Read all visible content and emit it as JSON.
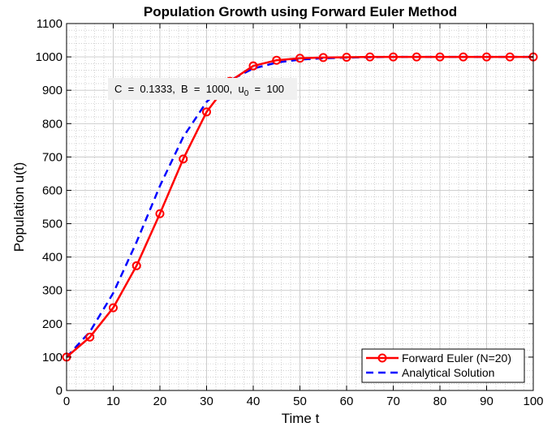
{
  "chart_data": {
    "type": "line",
    "title": "Population Growth using Forward Euler Method",
    "xlabel": "Time t",
    "ylabel": "Population u(t)",
    "xlim": [
      0,
      100
    ],
    "ylim": [
      0,
      1100
    ],
    "xticks": [
      0,
      10,
      20,
      30,
      40,
      50,
      60,
      70,
      80,
      90,
      100
    ],
    "yticks": [
      0,
      100,
      200,
      300,
      400,
      500,
      600,
      700,
      800,
      900,
      1000,
      1100
    ],
    "grid": "major and minor",
    "legend_position": "bottom-right",
    "annotation": {
      "prefix": "C  =  0.1333,  B  =  1000,  u",
      "sub": "0",
      "suffix": "  =  100"
    },
    "series": [
      {
        "name": "Forward Euler (N=20)",
        "color": "#ff0000",
        "style": "solid",
        "marker": "circle",
        "x": [
          0,
          5,
          10,
          15,
          20,
          25,
          30,
          35,
          40,
          45,
          50,
          55,
          60,
          65,
          70,
          75,
          80,
          85,
          90,
          95,
          100
        ],
        "y": [
          100,
          160,
          248,
          374,
          530,
          694,
          835,
          927,
          973,
          990,
          996,
          998,
          999,
          1000,
          1000,
          1000,
          1000,
          1000,
          1000,
          1000,
          1000
        ]
      },
      {
        "name": "Analytical Solution",
        "color": "#0000ff",
        "style": "dashed",
        "marker": "none",
        "x": [
          0,
          5,
          10,
          15,
          20,
          25,
          30,
          35,
          40,
          45,
          50,
          55,
          60,
          65,
          70,
          75,
          80,
          85,
          90,
          95,
          100
        ],
        "y": [
          100,
          176,
          292,
          445,
          613,
          760,
          865,
          930,
          965,
          983,
          992,
          996,
          998,
          999,
          1000,
          1000,
          1000,
          1000,
          1000,
          1000,
          1000
        ]
      }
    ]
  }
}
